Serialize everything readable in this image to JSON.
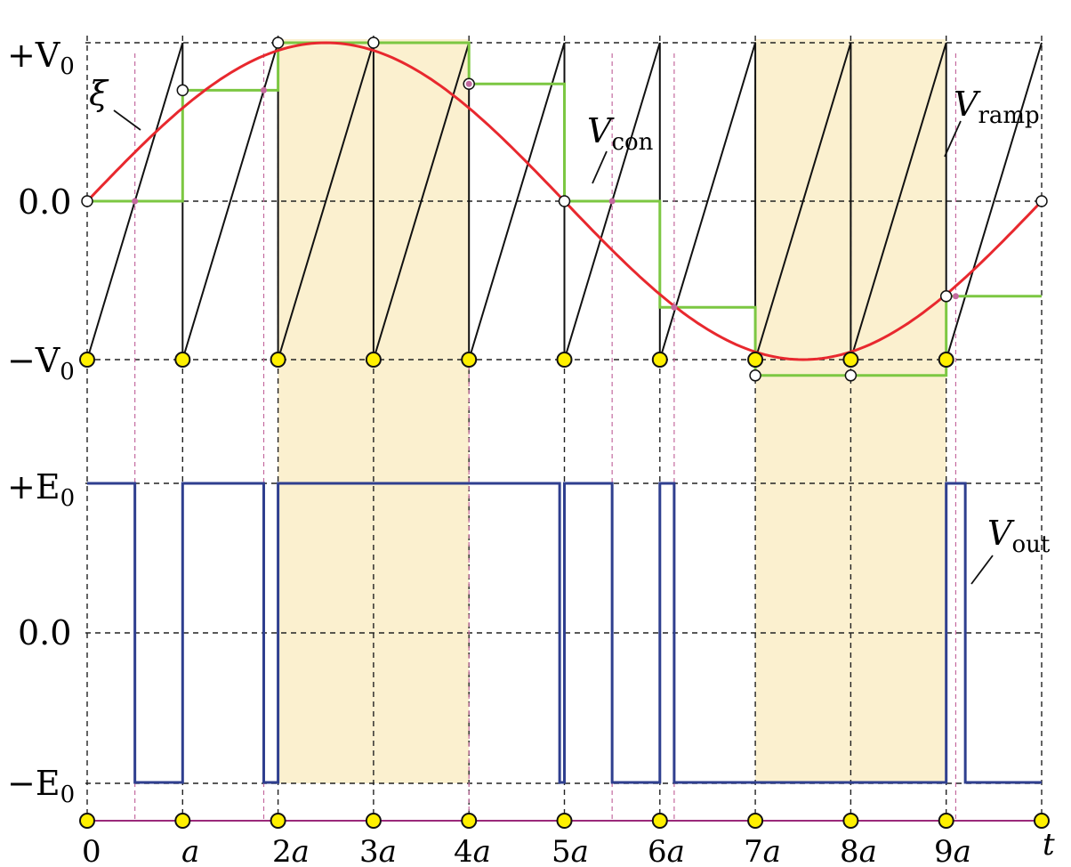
{
  "chart_data": {
    "type": "line",
    "title": "",
    "x": {
      "label": "t",
      "tick_labels": [
        "0",
        "a",
        "2a",
        "3a",
        "4a",
        "5a",
        "6a",
        "7a",
        "8a",
        "9a",
        "t"
      ],
      "range": [
        0,
        10
      ]
    },
    "shaded_intervals": [
      [
        2,
        4
      ],
      [
        7,
        9
      ]
    ],
    "top_panel": {
      "y_tick_labels": [
        "+V0",
        "0.0",
        "-V0"
      ],
      "y_range": [
        -1,
        1
      ],
      "series": [
        {
          "name": "ξ",
          "kind": "sine",
          "color": "#e8282e",
          "formula": "sin(2*pi*t/10)",
          "samples": [
            [
              0,
              0
            ],
            [
              1,
              0.59
            ],
            [
              2,
              0.95
            ],
            [
              3,
              0.95
            ],
            [
              4,
              0.59
            ],
            [
              5,
              0
            ],
            [
              6,
              -0.59
            ],
            [
              7,
              -0.95
            ],
            [
              8,
              -0.95
            ],
            [
              9,
              -0.59
            ],
            [
              10,
              0
            ]
          ]
        },
        {
          "name": "V_ramp",
          "kind": "sawtooth",
          "color": "#111111",
          "period": 1,
          "min": -1,
          "max": 1
        },
        {
          "name": "V_con",
          "kind": "sample-and-hold",
          "color": "#7cc742",
          "held_values": [
            0,
            0.7,
            1.0,
            1.0,
            0.74,
            0,
            -0.67,
            -1.1,
            -1.1,
            -0.6
          ]
        }
      ],
      "sample_markers": {
        "color": "#fff000",
        "y": -1,
        "at_t": [
          0,
          1,
          2,
          3,
          4,
          5,
          6,
          7,
          8,
          9
        ]
      },
      "crossing_markers": {
        "color": "#c46a9f",
        "at_t": [
          0.5,
          1.85,
          4.0,
          5.5,
          6.15,
          9.1
        ]
      },
      "annotations": [
        {
          "text": "ξ",
          "target": "sine"
        },
        {
          "text": "V",
          "subscript": "con",
          "target": "held signal"
        },
        {
          "text": "V",
          "subscript": "ramp",
          "target": "sawtooth"
        }
      ]
    },
    "bottom_panel": {
      "y_tick_labels": [
        "+E0",
        "0.0",
        "-E0"
      ],
      "y_range": [
        -1,
        1
      ],
      "series": [
        {
          "name": "V_out",
          "kind": "pwm",
          "color": "#2f3f8f",
          "high_intervals": [
            [
              0,
              0.5
            ],
            [
              1,
              1.85
            ],
            [
              2,
              4.95
            ],
            [
              5,
              5.5
            ],
            [
              6,
              6.15
            ],
            [
              9,
              9.2
            ]
          ]
        }
      ],
      "annotations": [
        {
          "text": "V",
          "subscript": "out",
          "target": "pwm"
        }
      ]
    },
    "axis_markers": {
      "color": "#fff000",
      "at_t": [
        0,
        1,
        2,
        3,
        4,
        5,
        6,
        7,
        8,
        9,
        10
      ]
    }
  },
  "labels": {
    "top_ticks": [
      {
        "main": "+V",
        "sub": "0"
      },
      {
        "main": "0.0",
        "sub": ""
      },
      {
        "main": "−V",
        "sub": "0"
      }
    ],
    "bottom_ticks": [
      {
        "main": "+E",
        "sub": "0"
      },
      {
        "main": "0.0",
        "sub": ""
      },
      {
        "main": "−E",
        "sub": "0"
      }
    ],
    "xi": "ξ",
    "v_con": {
      "main": "V",
      "sub": "con"
    },
    "v_ramp": {
      "main": "V",
      "sub": "ramp"
    },
    "v_out": {
      "main": "V",
      "sub": "out"
    },
    "x_ticks": [
      {
        "main": "0",
        "sub": ""
      },
      {
        "main": "",
        "sub": "a"
      },
      {
        "main": "2",
        "sub": "a"
      },
      {
        "main": "3",
        "sub": "a"
      },
      {
        "main": "4",
        "sub": "a"
      },
      {
        "main": "5",
        "sub": "a"
      },
      {
        "main": "6",
        "sub": "a"
      },
      {
        "main": "7",
        "sub": "a"
      },
      {
        "main": "8",
        "sub": "a"
      },
      {
        "main": "9",
        "sub": "a"
      },
      {
        "main": "",
        "sub": "t"
      }
    ]
  }
}
